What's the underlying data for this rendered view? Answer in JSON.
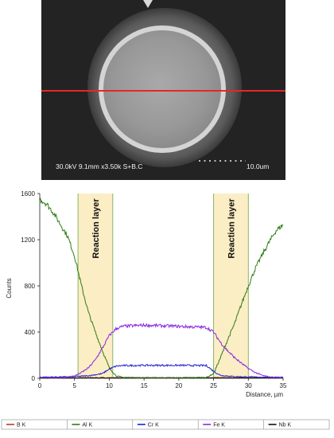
{
  "micrograph": {
    "caption": "30.0kV 9.1mm x3.50k S+B.C",
    "scale_label": "10.0um",
    "scan_line_color": "#e8262a"
  },
  "chart_data": {
    "type": "line",
    "xlabel": "Distance, µm",
    "ylabel": "Counts",
    "xlim": [
      0,
      35
    ],
    "ylim": [
      0,
      1600
    ],
    "x_ticks": [
      0,
      5,
      10,
      15,
      20,
      25,
      30,
      35
    ],
    "y_ticks": [
      0,
      400,
      800,
      1200,
      1600
    ],
    "x_tick_labels": [
      "0",
      "5",
      "10",
      "15",
      "20",
      "25",
      "30",
      "35"
    ],
    "y_tick_labels": [
      "0",
      "400",
      "800",
      "1200",
      "1600"
    ],
    "grid": false,
    "legend_position": "bottom",
    "regions": [
      {
        "label": "Reaction layer",
        "x_start": 5.5,
        "x_end": 10.5,
        "color": "#fbedc4"
      },
      {
        "label": "Reaction layer",
        "x_start": 25.0,
        "x_end": 30.0,
        "color": "#fbedc4"
      }
    ],
    "series": [
      {
        "name": "B K",
        "color": "#b8402a",
        "x": [
          0,
          35
        ],
        "y": [
          5,
          5
        ]
      },
      {
        "name": "Al K",
        "color": "#2e7d16",
        "x": [
          0,
          1,
          2,
          3,
          4,
          5,
          6,
          7,
          8,
          9,
          10,
          11,
          12,
          15,
          20,
          24,
          25,
          26,
          27,
          28,
          29,
          30,
          31,
          32,
          33,
          34,
          35
        ],
        "y": [
          1550,
          1510,
          1430,
          1330,
          1230,
          1060,
          800,
          570,
          400,
          240,
          90,
          20,
          8,
          5,
          5,
          8,
          40,
          180,
          330,
          470,
          640,
          800,
          950,
          1070,
          1180,
          1280,
          1330
        ]
      },
      {
        "name": "Cr K",
        "color": "#2020d0",
        "x": [
          0,
          3,
          5,
          7,
          9,
          10,
          11,
          12,
          15,
          20,
          24,
          25,
          26,
          28,
          30,
          32,
          35
        ],
        "y": [
          10,
          12,
          15,
          22,
          40,
          80,
          105,
          110,
          112,
          112,
          110,
          60,
          25,
          15,
          12,
          10,
          10
        ]
      },
      {
        "name": "Fe K",
        "color": "#8a2be2",
        "x": [
          0,
          2,
          4,
          5,
          6,
          7,
          8,
          9,
          10,
          11,
          12,
          15,
          20,
          24,
          25,
          26,
          27,
          28,
          29,
          30,
          31,
          32,
          33,
          34,
          35
        ],
        "y": [
          5,
          6,
          10,
          20,
          50,
          90,
          160,
          260,
          370,
          430,
          450,
          460,
          450,
          440,
          400,
          310,
          240,
          180,
          130,
          85,
          50,
          25,
          12,
          8,
          5
        ]
      },
      {
        "name": "Nb K",
        "color": "#111111",
        "x": [
          0,
          35
        ],
        "y": [
          3,
          3
        ]
      }
    ]
  }
}
